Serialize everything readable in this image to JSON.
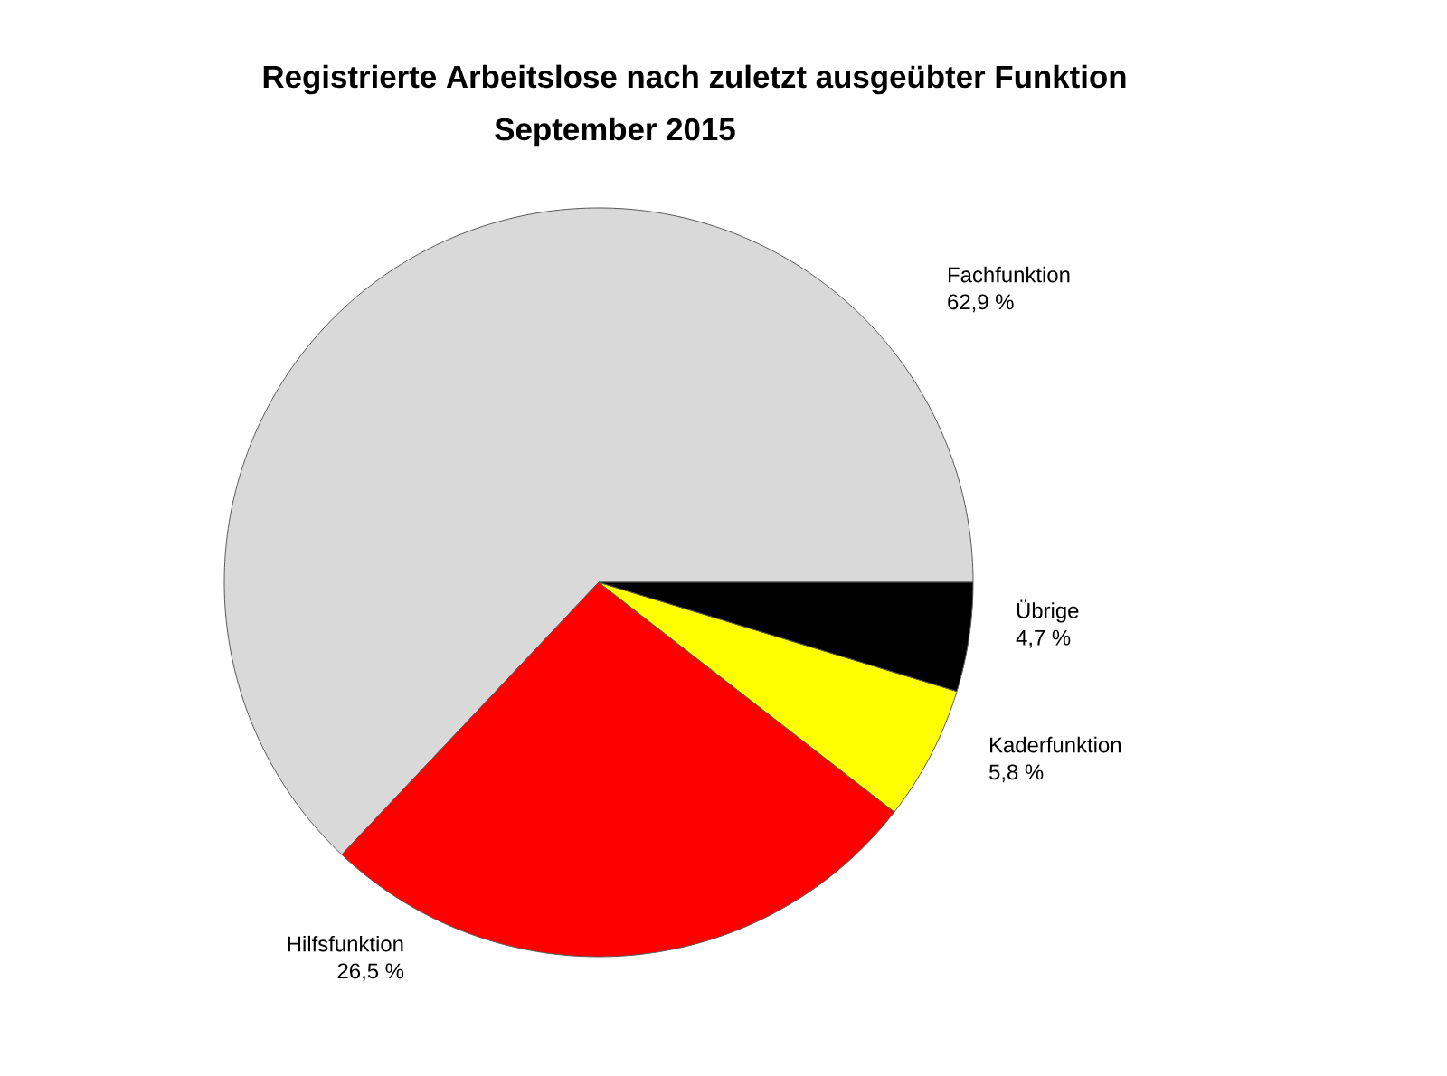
{
  "chart_data": {
    "type": "pie",
    "title": "Registrierte Arbeitslose nach zuletzt ausgeübter Funktion",
    "subtitle": "September 2015",
    "categories": [
      "Fachfunktion",
      "Hilfsfunktion",
      "Kaderfunktion",
      "Übrige"
    ],
    "values": [
      62.9,
      26.5,
      5.8,
      4.7
    ],
    "colors": [
      "#d9d9d9",
      "#ff0000",
      "#ffff00",
      "#000000"
    ],
    "value_labels": [
      "62,9 %",
      "26,5 %",
      "5,8 %",
      "4,7 %"
    ]
  }
}
